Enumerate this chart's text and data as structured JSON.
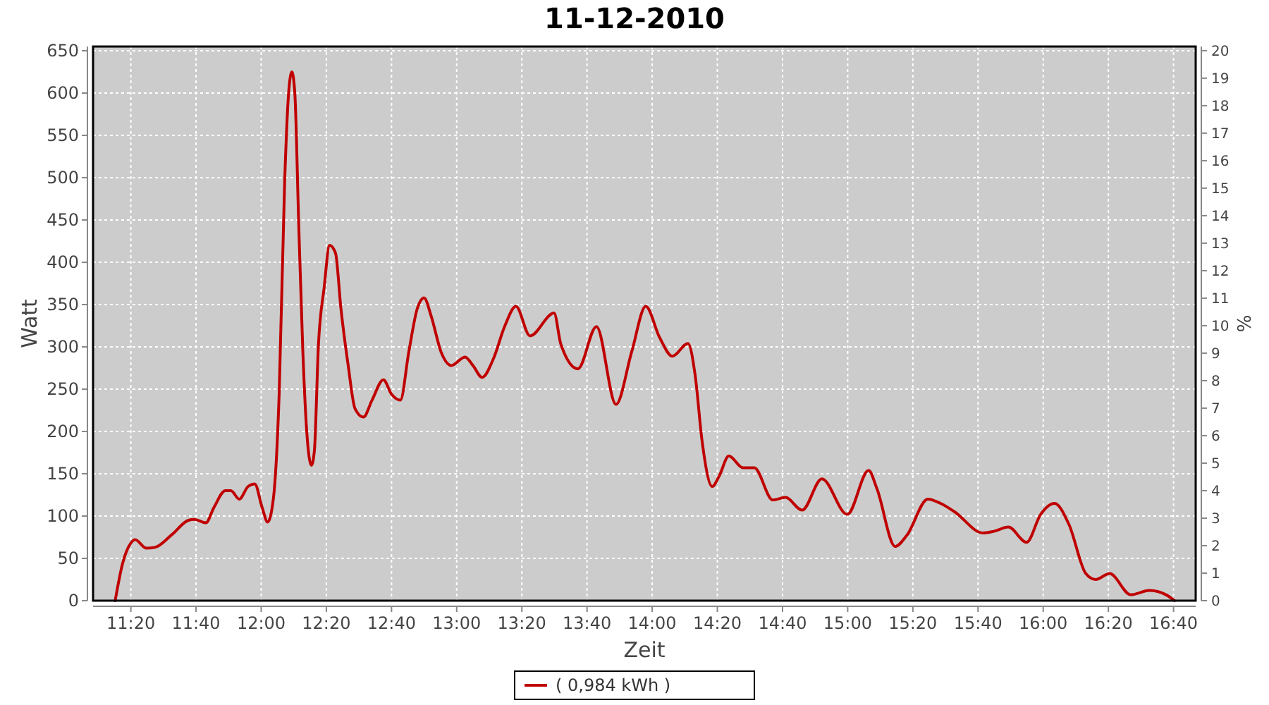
{
  "chart_data": {
    "type": "line",
    "title": "11-12-2010",
    "xlabel": "Zeit",
    "ylabel": "Watt",
    "y2label": "%",
    "xlim": [
      11.14,
      16.78
    ],
    "xticks": [
      {
        "value": 11.3333,
        "label": "11:20"
      },
      {
        "value": 11.6667,
        "label": "11:40"
      },
      {
        "value": 12,
        "label": "12:00"
      },
      {
        "value": 12.3333,
        "label": "12:20"
      },
      {
        "value": 12.6667,
        "label": "12:40"
      },
      {
        "value": 13,
        "label": "13:00"
      },
      {
        "value": 13.3333,
        "label": "13:20"
      },
      {
        "value": 13.6667,
        "label": "13:40"
      },
      {
        "value": 14,
        "label": "14:00"
      },
      {
        "value": 14.3333,
        "label": "14:20"
      },
      {
        "value": 14.6667,
        "label": "14:40"
      },
      {
        "value": 15,
        "label": "15:00"
      },
      {
        "value": 15.3333,
        "label": "15:20"
      },
      {
        "value": 15.6667,
        "label": "15:40"
      },
      {
        "value": 16,
        "label": "16:00"
      },
      {
        "value": 16.3333,
        "label": "16:20"
      },
      {
        "value": 16.6667,
        "label": "16:40"
      }
    ],
    "ylim": [
      0,
      655
    ],
    "yticks": [
      0,
      50,
      100,
      150,
      200,
      250,
      300,
      350,
      400,
      450,
      500,
      550,
      600,
      650
    ],
    "y2lim": [
      0,
      20.15
    ],
    "y2ticks": [
      0,
      1,
      2,
      3,
      4,
      5,
      6,
      7,
      8,
      9,
      10,
      11,
      12,
      13,
      14,
      15,
      16,
      17,
      18,
      19,
      20
    ],
    "grid": true,
    "legend": "bottom",
    "marker": "none",
    "line_style": "solid",
    "series": [
      {
        "name": "( 0,984 kWh )",
        "color": "#c00000",
        "x": [
          11.253,
          11.29,
          11.333,
          11.355,
          11.413,
          11.457,
          11.543,
          11.628,
          11.658,
          11.717,
          11.758,
          11.817,
          11.845,
          11.888,
          11.933,
          11.967,
          12.005,
          12.033,
          12.062,
          12.092,
          12.12,
          12.142,
          12.157,
          12.172,
          12.192,
          12.213,
          12.233,
          12.257,
          12.272,
          12.293,
          12.322,
          12.35,
          12.38,
          12.408,
          12.445,
          12.48,
          12.523,
          12.567,
          12.625,
          12.667,
          12.712,
          12.755,
          12.798,
          12.833,
          12.87,
          12.92,
          12.972,
          13.043,
          13.083,
          13.13,
          13.188,
          13.245,
          13.303,
          13.375,
          13.498,
          13.533,
          13.62,
          13.715,
          13.815,
          13.895,
          13.967,
          14.038,
          14.103,
          14.183,
          14.22,
          14.255,
          14.307,
          14.342,
          14.392,
          14.465,
          14.522,
          14.617,
          14.682,
          14.767,
          14.868,
          14.998,
          15.107,
          15.15,
          15.243,
          15.302,
          15.41,
          15.475,
          15.547,
          15.692,
          15.748,
          15.822,
          15.915,
          15.987,
          16.058,
          16.132,
          16.218,
          16.268,
          16.34,
          16.448,
          16.543,
          16.628,
          16.672
        ],
        "values": [
          0,
          43,
          68,
          72,
          62,
          63,
          78,
          95,
          96,
          92,
          110,
          130,
          130,
          120,
          135,
          138,
          110,
          93,
          120,
          245,
          495,
          605,
          625,
          600,
          445,
          295,
          200,
          160,
          177,
          303,
          370,
          420,
          411,
          345,
          278,
          227,
          217,
          237,
          261,
          244,
          237,
          294,
          345,
          358,
          336,
          294,
          278,
          288,
          278,
          264,
          286,
          324,
          348,
          313,
          340,
          303,
          274,
          324,
          232,
          294,
          348,
          311,
          289,
          304,
          266,
          189,
          135,
          147,
          171,
          157,
          157,
          119,
          122,
          107,
          144,
          102,
          154,
          132,
          64,
          77,
          120,
          115,
          105,
          80,
          82,
          87,
          69,
          102,
          115,
          90,
          32,
          25,
          32,
          7,
          12,
          7,
          0
        ]
      }
    ]
  }
}
